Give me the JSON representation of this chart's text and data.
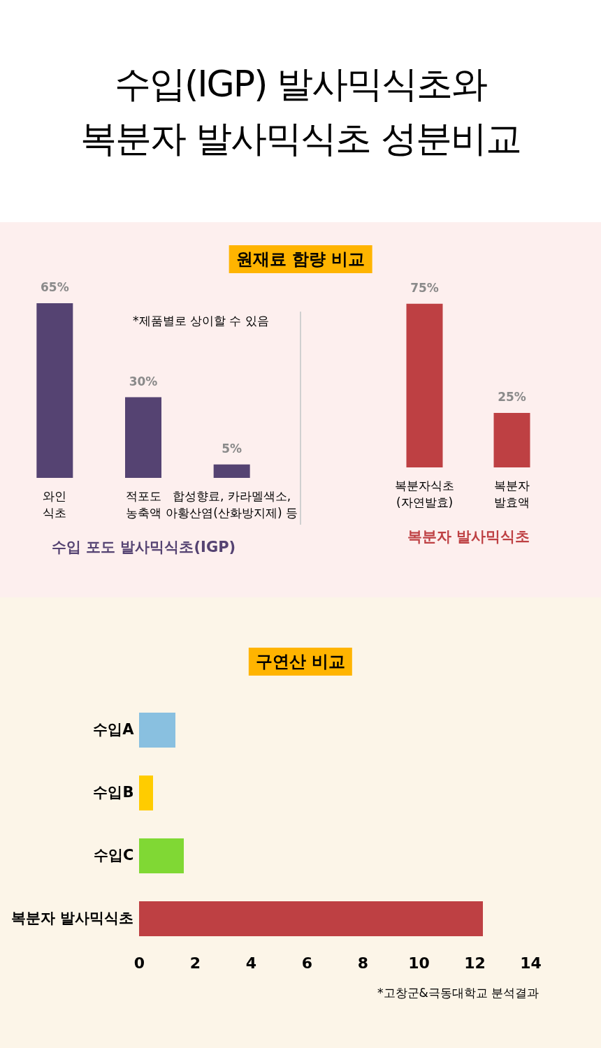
{
  "chart_data": [
    {
      "type": "bar",
      "title": "수입(IGP) 발사믹식초와\n복분자 발사믹식초 성분비교",
      "subtitle": "원재료 함량 비교",
      "xlabel": "수입 포도 발사믹식초(IGP)",
      "categories": [
        "와인\n식초",
        "적포도\n농축액",
        "합성향료, 카라멜색소,\n아황산염(산화방지제) 등"
      ],
      "values": [
        65,
        30,
        5
      ],
      "value_labels": [
        "65%",
        "30%",
        "5%"
      ],
      "color": "#554372",
      "annotations": [
        "*제품별로 상이할 수 있음"
      ]
    },
    {
      "type": "bar",
      "xlabel": "복분자 발사믹식초",
      "categories": [
        "복분자식초\n(자연발효)",
        "복분자\n발효액"
      ],
      "values": [
        75,
        25
      ],
      "value_labels": [
        "75%",
        "25%"
      ],
      "color": "#be4043"
    },
    {
      "type": "bar",
      "orientation": "horizontal",
      "title": "구연산 비교",
      "categories": [
        "수입A",
        "수입B",
        "수입C",
        "복분자 발사믹식초"
      ],
      "values": [
        1.3,
        0.5,
        1.6,
        12.3
      ],
      "colors": [
        "#89c0e0",
        "#ffcc00",
        "#80d834",
        "#be4043"
      ],
      "xlim": [
        0,
        14
      ],
      "xticks": [
        0,
        2,
        4,
        6,
        8,
        10,
        12,
        14
      ],
      "annotations": [
        "*고창군&극동대학교 분석결과"
      ]
    }
  ]
}
